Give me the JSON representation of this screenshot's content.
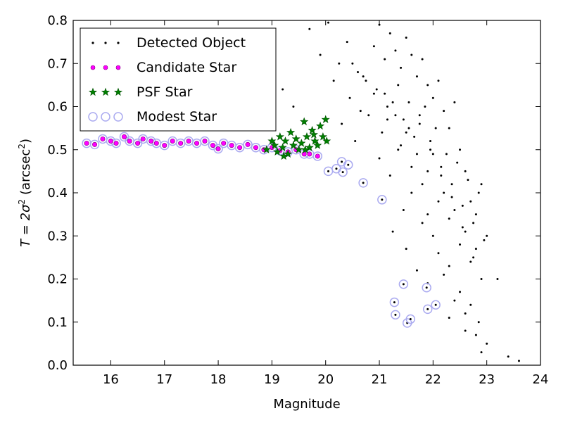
{
  "chart_data": {
    "type": "scatter",
    "xlabel": "Magnitude",
    "ylabel_main": "T = 2σ",
    "ylabel_sup": "2",
    "ylabel_unit": "(arcsec",
    "ylabel_unit_sup": "2",
    "ylabel_close": ")",
    "xlim": [
      15.3,
      24
    ],
    "ylim": [
      0.0,
      0.8
    ],
    "xticks": [
      "16",
      "17",
      "18",
      "19",
      "20",
      "21",
      "22",
      "23",
      "24"
    ],
    "yticks": [
      "0.0",
      "0.1",
      "0.2",
      "0.3",
      "0.4",
      "0.5",
      "0.6",
      "0.7",
      "0.8"
    ],
    "grid": false,
    "legend_position": "top-left",
    "legend": [
      {
        "label": "Detected Object",
        "marker": "dot",
        "color": "#000000"
      },
      {
        "label": "Candidate Star",
        "marker": "circle",
        "color": "#ff00ff"
      },
      {
        "label": "PSF Star",
        "marker": "star",
        "color": "#008000"
      },
      {
        "label": "Modest Star",
        "marker": "ring",
        "color": "#aaaaf0"
      }
    ],
    "series": [
      {
        "name": "Modest Star",
        "x": [
          15.55,
          15.7,
          15.85,
          16.0,
          16.1,
          16.25,
          16.35,
          16.5,
          16.6,
          16.75,
          16.85,
          17.0,
          17.15,
          17.3,
          17.45,
          17.6,
          17.75,
          17.9,
          18.0,
          18.1,
          18.25,
          18.4,
          18.55,
          18.7,
          18.85,
          19.0,
          19.15,
          19.3,
          19.45,
          19.6,
          19.7,
          19.85,
          20.05,
          20.2,
          20.3,
          20.42,
          20.32,
          20.7,
          21.05,
          21.28,
          21.3,
          21.45,
          21.52,
          21.58,
          21.88,
          21.9,
          22.05
        ],
        "y": [
          0.515,
          0.512,
          0.525,
          0.52,
          0.515,
          0.53,
          0.52,
          0.515,
          0.525,
          0.52,
          0.515,
          0.51,
          0.52,
          0.515,
          0.52,
          0.515,
          0.52,
          0.51,
          0.502,
          0.515,
          0.51,
          0.505,
          0.512,
          0.505,
          0.5,
          0.505,
          0.498,
          0.495,
          0.5,
          0.49,
          0.49,
          0.485,
          0.45,
          0.456,
          0.472,
          0.465,
          0.448,
          0.423,
          0.384,
          0.146,
          0.117,
          0.188,
          0.098,
          0.107,
          0.18,
          0.13,
          0.14
        ]
      },
      {
        "name": "Candidate Star",
        "x": [
          15.55,
          15.7,
          15.85,
          16.0,
          16.1,
          16.25,
          16.35,
          16.5,
          16.6,
          16.75,
          16.85,
          17.0,
          17.15,
          17.3,
          17.45,
          17.6,
          17.75,
          17.9,
          18.0,
          18.1,
          18.25,
          18.4,
          18.55,
          18.7,
          18.85,
          19.0,
          19.15,
          19.3,
          19.45,
          19.6,
          19.7,
          19.85
        ],
        "y": [
          0.515,
          0.512,
          0.525,
          0.52,
          0.515,
          0.53,
          0.52,
          0.515,
          0.525,
          0.52,
          0.515,
          0.51,
          0.52,
          0.515,
          0.52,
          0.515,
          0.52,
          0.51,
          0.502,
          0.515,
          0.51,
          0.505,
          0.512,
          0.505,
          0.5,
          0.505,
          0.498,
          0.495,
          0.5,
          0.49,
          0.49,
          0.485
        ]
      },
      {
        "name": "PSF Star",
        "x": [
          18.9,
          19.0,
          19.05,
          19.1,
          19.15,
          19.2,
          19.25,
          19.3,
          19.35,
          19.4,
          19.45,
          19.5,
          19.55,
          19.6,
          19.65,
          19.7,
          19.75,
          19.8,
          19.85,
          19.9,
          19.95,
          20.0,
          20.02,
          19.22,
          19.62,
          19.78
        ],
        "y": [
          0.5,
          0.52,
          0.51,
          0.495,
          0.53,
          0.505,
          0.52,
          0.49,
          0.54,
          0.51,
          0.525,
          0.5,
          0.515,
          0.565,
          0.53,
          0.505,
          0.545,
          0.52,
          0.51,
          0.555,
          0.53,
          0.57,
          0.52,
          0.485,
          0.5,
          0.535
        ]
      },
      {
        "name": "Detected Object",
        "x": [
          19.2,
          19.4,
          19.7,
          19.9,
          20.05,
          20.25,
          20.4,
          20.6,
          20.75,
          20.9,
          21.0,
          21.1,
          21.2,
          21.3,
          21.4,
          21.5,
          21.6,
          21.7,
          21.8,
          21.9,
          22.0,
          22.1,
          22.2,
          22.3,
          22.4,
          22.5,
          22.6,
          22.7,
          22.8,
          22.9,
          23.0,
          23.2,
          23.4,
          23.6,
          20.3,
          20.55,
          20.8,
          21.05,
          21.25,
          21.45,
          21.65,
          21.85,
          22.05,
          22.25,
          22.45,
          22.65,
          22.85,
          20.15,
          20.45,
          20.65,
          20.95,
          21.15,
          21.35,
          21.55,
          21.75,
          21.95,
          22.15,
          22.35,
          22.55,
          22.75,
          22.95,
          21.0,
          21.2,
          21.4,
          21.6,
          21.8,
          22.0,
          22.2,
          22.4,
          22.6,
          22.8,
          21.1,
          21.3,
          21.5,
          21.7,
          21.9,
          22.1,
          22.3,
          22.5,
          22.7,
          20.5,
          20.7,
          20.9,
          21.15,
          21.35,
          21.55,
          21.75,
          21.95,
          22.15,
          22.35,
          22.55,
          22.75,
          22.9,
          21.25,
          21.5,
          21.7,
          21.9,
          22.1,
          22.3,
          22.5,
          22.7,
          22.85,
          21.45,
          21.8,
          22.0,
          22.2,
          22.4,
          22.6,
          22.8,
          23.0,
          21.6,
          21.9,
          22.3,
          22.6,
          22.9
        ],
        "y": [
          0.64,
          0.6,
          0.78,
          0.72,
          0.795,
          0.7,
          0.75,
          0.68,
          0.66,
          0.74,
          0.79,
          0.71,
          0.77,
          0.73,
          0.69,
          0.76,
          0.72,
          0.67,
          0.71,
          0.65,
          0.62,
          0.66,
          0.59,
          0.55,
          0.61,
          0.5,
          0.45,
          0.38,
          0.35,
          0.42,
          0.3,
          0.2,
          0.02,
          0.01,
          0.56,
          0.52,
          0.58,
          0.54,
          0.61,
          0.57,
          0.53,
          0.6,
          0.55,
          0.49,
          0.47,
          0.43,
          0.4,
          0.66,
          0.62,
          0.59,
          0.64,
          0.57,
          0.5,
          0.55,
          0.58,
          0.52,
          0.46,
          0.42,
          0.37,
          0.33,
          0.29,
          0.48,
          0.44,
          0.51,
          0.46,
          0.42,
          0.49,
          0.4,
          0.36,
          0.31,
          0.27,
          0.63,
          0.58,
          0.54,
          0.49,
          0.45,
          0.38,
          0.34,
          0.28,
          0.24,
          0.7,
          0.67,
          0.63,
          0.6,
          0.65,
          0.61,
          0.56,
          0.5,
          0.44,
          0.39,
          0.32,
          0.25,
          0.2,
          0.31,
          0.27,
          0.22,
          0.19,
          0.26,
          0.23,
          0.17,
          0.14,
          0.1,
          0.36,
          0.33,
          0.3,
          0.21,
          0.15,
          0.12,
          0.07,
          0.05,
          0.4,
          0.35,
          0.11,
          0.08,
          0.03
        ]
      }
    ]
  }
}
